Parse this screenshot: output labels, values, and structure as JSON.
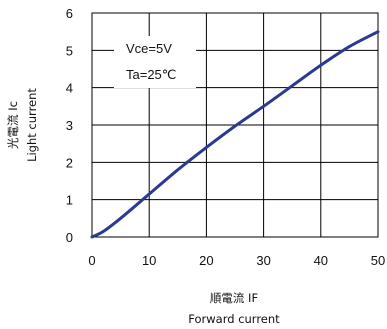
{
  "chart_data": {
    "type": "line",
    "title": "",
    "xlabel": "順電流 IF",
    "xlabel_sub": "Forward current",
    "ylabel": "光電流 Ic",
    "ylabel_sub": "Light current",
    "xlim": [
      0,
      50
    ],
    "ylim": [
      0,
      6
    ],
    "xticks": [
      0,
      10,
      20,
      30,
      40,
      50
    ],
    "yticks": [
      0,
      1,
      2,
      3,
      4,
      5,
      6
    ],
    "grid": true,
    "annotations": [
      "Vce=5V",
      "Ta=25℃"
    ],
    "series": [
      {
        "color": "#2b3990",
        "x": [
          0,
          2,
          5,
          10,
          15,
          20,
          25,
          30,
          35,
          40,
          45,
          50
        ],
        "y": [
          0,
          0.15,
          0.5,
          1.15,
          1.8,
          2.4,
          2.97,
          3.5,
          4.05,
          4.6,
          5.1,
          5.5
        ]
      }
    ]
  }
}
